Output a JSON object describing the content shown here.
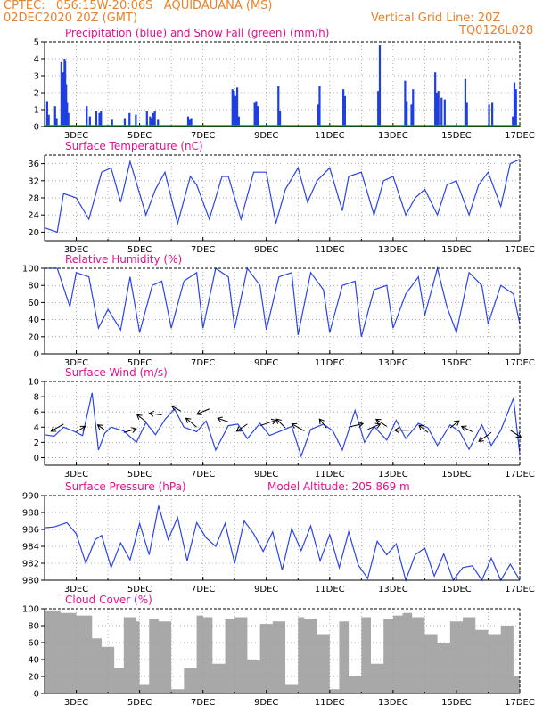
{
  "header": {
    "line1_left": "CPTEC:   056:15W-20:06S   AQUIDAUANA (MS)",
    "line2_left": "02DEC2020 20Z (GMT)",
    "line2_right": "Vertical Grid Line: 20Z",
    "line3_right": "TQ0126L028"
  },
  "colors": {
    "header": "#e8822a",
    "title": "#e0118e",
    "precip": "#1f3fe0",
    "snow": "#1fa01f",
    "line": "#2a44e8",
    "cloud": "#a8a8a8",
    "grid": "#9a9a9a"
  },
  "x_axis": {
    "day_ticks": [
      "3DEC",
      "5DEC",
      "7DEC",
      "9DEC",
      "11DEC",
      "13DEC",
      "15DEC",
      "17DEC"
    ]
  },
  "chart_data": [
    {
      "id": "precip",
      "type": "bar",
      "title": "Precipitation (blue) and Snow Fall (green) (mm/h)",
      "ylim": [
        0,
        5
      ],
      "yticks": [
        "0",
        "1",
        "2",
        "3",
        "4",
        "5"
      ],
      "series": [
        {
          "name": "Precipitation (blue)",
          "x": [
            0.05,
            0.1,
            0.3,
            0.35,
            0.5,
            0.55,
            0.6,
            0.62,
            0.65,
            0.68,
            0.72,
            1.3,
            1.4,
            1.6,
            1.7,
            1.75,
            2.1,
            2.5,
            2.65,
            2.85,
            3.2,
            3.3,
            3.35,
            3.4,
            3.45,
            3.55,
            4.5,
            4.55,
            4.6,
            5.9,
            5.95,
            6.0,
            6.05,
            6.1,
            6.6,
            6.65,
            6.7,
            7.35,
            7.4,
            8.6,
            8.65,
            9.4,
            9.45,
            10.5,
            10.55,
            11.35,
            11.4,
            11.55,
            11.6,
            12.3,
            12.35,
            12.4,
            12.5,
            12.6,
            13.25,
            13.3,
            14.0,
            14.1,
            14.75,
            14.8,
            14.85
          ],
          "values": [
            1.5,
            0.7,
            1.2,
            0.5,
            3.8,
            3.2,
            4.0,
            3.9,
            2.5,
            1.4,
            0.8,
            1.2,
            0.6,
            0.9,
            0.8,
            0.9,
            0.4,
            0.5,
            0.8,
            0.7,
            0.9,
            0.6,
            0.5,
            0.8,
            0.9,
            0.4,
            0.6,
            0.4,
            0.5,
            2.2,
            2.1,
            1.8,
            2.3,
            0.6,
            1.4,
            1.5,
            1.2,
            2.4,
            0.9,
            1.3,
            2.4,
            2.2,
            1.8,
            2.1,
            4.8,
            2.7,
            1.5,
            1.3,
            2.2,
            3.2,
            2.0,
            2.1,
            1.7,
            1.6,
            2.8,
            1.4,
            1.3,
            1.4,
            0.6,
            2.6,
            2.2
          ]
        },
        {
          "name": "Snow Fall (green)",
          "x": [
            0,
            15
          ],
          "values": [
            0,
            0
          ]
        }
      ]
    },
    {
      "id": "temp",
      "type": "line",
      "title": "Surface Temperature (nC)",
      "ylim": [
        18,
        38
      ],
      "yticks": [
        "20",
        "24",
        "28",
        "32",
        "36"
      ],
      "series": [
        {
          "x": [
            0,
            0.4,
            0.6,
            1.0,
            1.4,
            1.8,
            2.1,
            2.4,
            2.7,
            3.2,
            3.5,
            3.8,
            4.2,
            4.6,
            4.8,
            5.2,
            5.6,
            5.8,
            6.2,
            6.6,
            7.0,
            7.3,
            7.6,
            8.0,
            8.3,
            8.6,
            9.0,
            9.4,
            9.6,
            10.0,
            10.4,
            10.7,
            11.0,
            11.4,
            11.7,
            12.0,
            12.4,
            12.7,
            13.0,
            13.4,
            13.7,
            14.0,
            14.4,
            14.7,
            15.0
          ],
          "values": [
            21,
            20,
            29,
            28,
            23,
            34,
            35,
            27,
            36.5,
            24,
            30,
            34,
            22,
            33,
            31,
            23,
            33,
            33,
            23,
            34,
            34,
            22,
            30,
            35,
            27,
            32,
            35,
            25,
            33,
            34,
            24,
            32,
            33,
            24,
            28,
            30,
            24,
            31,
            32,
            24,
            31,
            34,
            26,
            36,
            37
          ]
        }
      ]
    },
    {
      "id": "rh",
      "type": "line",
      "title": "Relative Humidity (%)",
      "ylim": [
        0,
        100
      ],
      "yticks": [
        "0",
        "20",
        "40",
        "60",
        "80",
        "100"
      ],
      "series": [
        {
          "x": [
            0,
            0.4,
            0.8,
            1.0,
            1.4,
            1.7,
            2.0,
            2.4,
            2.7,
            3.0,
            3.4,
            3.7,
            4.0,
            4.4,
            4.8,
            5.0,
            5.4,
            5.8,
            6.0,
            6.4,
            6.8,
            7.0,
            7.4,
            7.8,
            8.0,
            8.4,
            8.8,
            9.0,
            9.4,
            9.8,
            10.0,
            10.4,
            10.8,
            11.0,
            11.4,
            11.8,
            12.0,
            12.4,
            12.7,
            13.0,
            13.4,
            13.8,
            14.0,
            14.4,
            14.8,
            15.0
          ],
          "values": [
            100,
            100,
            55,
            95,
            90,
            30,
            52,
            28,
            90,
            25,
            80,
            85,
            30,
            85,
            95,
            30,
            100,
            90,
            30,
            100,
            80,
            28,
            90,
            95,
            22,
            95,
            75,
            25,
            80,
            85,
            20,
            75,
            80,
            30,
            70,
            90,
            45,
            100,
            55,
            25,
            95,
            80,
            35,
            80,
            70,
            35
          ]
        }
      ]
    },
    {
      "id": "wind",
      "type": "line",
      "title": "Surface Wind (m/s)",
      "ylim": [
        -1,
        10
      ],
      "yticks": [
        "0",
        "2",
        "4",
        "6",
        "8",
        "10"
      ],
      "series": [
        {
          "x": [
            0,
            0.3,
            0.6,
            0.9,
            1.2,
            1.5,
            1.7,
            1.9,
            2.1,
            2.5,
            2.9,
            3.2,
            3.5,
            3.8,
            4.1,
            4.4,
            4.8,
            5.1,
            5.4,
            5.8,
            6.1,
            6.4,
            6.8,
            7.1,
            7.4,
            7.8,
            8.1,
            8.4,
            8.8,
            9.1,
            9.4,
            9.8,
            10.1,
            10.4,
            10.8,
            11.1,
            11.4,
            11.8,
            12.1,
            12.4,
            12.8,
            13.1,
            13.4,
            13.8,
            14.1,
            14.4,
            14.8,
            15.0
          ],
          "values": [
            3,
            2.8,
            4,
            3.5,
            2.9,
            8.5,
            1,
            3.2,
            4,
            3.5,
            2,
            4.6,
            3,
            5,
            6.4,
            4,
            3.4,
            4.8,
            1,
            4.2,
            4.4,
            2.5,
            4.5,
            2.9,
            3.4,
            4.1,
            0.2,
            3.7,
            4.4,
            3.5,
            1,
            6.2,
            2,
            4.1,
            2.3,
            4.9,
            2.5,
            4.5,
            3.9,
            1.6,
            4.3,
            3.4,
            1.1,
            4.3,
            1.6,
            3.6,
            7.8,
            0.5
          ]
        }
      ]
    },
    {
      "id": "pressure",
      "type": "line",
      "title": "Surface Pressure (hPa)",
      "annotation": "Model Altitude: 205.869 m",
      "ylim": [
        980,
        990
      ],
      "yticks": [
        "980",
        "982",
        "984",
        "986",
        "988",
        "990"
      ],
      "series": [
        {
          "x": [
            0,
            0.3,
            0.7,
            1.0,
            1.3,
            1.6,
            1.8,
            2.1,
            2.4,
            2.7,
            3.0,
            3.3,
            3.6,
            3.9,
            4.2,
            4.5,
            4.8,
            5.1,
            5.4,
            5.7,
            6.0,
            6.3,
            6.6,
            6.9,
            7.2,
            7.5,
            7.8,
            8.1,
            8.4,
            8.7,
            9.0,
            9.3,
            9.6,
            9.9,
            10.2,
            10.5,
            10.8,
            11.1,
            11.4,
            11.7,
            12.0,
            12.3,
            12.6,
            12.9,
            13.2,
            13.5,
            13.8,
            14.1,
            14.4,
            14.7,
            15.0
          ],
          "values": [
            986.2,
            986.3,
            986.8,
            985.5,
            982.0,
            984.8,
            985.3,
            981.5,
            984.4,
            982.4,
            986.7,
            983.0,
            988.8,
            984.8,
            987.4,
            982.3,
            986.8,
            985.0,
            984.0,
            986.7,
            982.0,
            987.0,
            985.5,
            983.4,
            985.7,
            981.2,
            986.1,
            983.5,
            986.4,
            982.3,
            985.4,
            981.5,
            985.7,
            981.8,
            980.2,
            984.6,
            983.0,
            984.3,
            980.0,
            983.0,
            983.8,
            980.5,
            983.1,
            979.5,
            981.5,
            981.7,
            979.8,
            982.6,
            979.6,
            981.9,
            980.0
          ]
        }
      ]
    },
    {
      "id": "cloud",
      "type": "area",
      "title": "Cloud Cover (%)",
      "ylim": [
        0,
        100
      ],
      "yticks": [
        "0",
        "20",
        "40",
        "60",
        "80",
        "100"
      ],
      "series": [
        {
          "x": [
            0,
            0.5,
            1.0,
            1.5,
            1.8,
            2.2,
            2.5,
            2.9,
            3.0,
            3.3,
            3.6,
            4.0,
            4.4,
            4.8,
            5.0,
            5.3,
            5.7,
            6.0,
            6.4,
            6.8,
            7.2,
            7.6,
            8.0,
            8.2,
            8.6,
            9.0,
            9.3,
            9.6,
            10.0,
            10.3,
            10.7,
            11.0,
            11.3,
            11.6,
            12.0,
            12.4,
            12.8,
            13.2,
            13.6,
            14.0,
            14.4,
            14.8,
            15.0
          ],
          "values": [
            98,
            95,
            92,
            65,
            55,
            30,
            90,
            85,
            10,
            88,
            85,
            5,
            30,
            92,
            90,
            35,
            88,
            90,
            40,
            82,
            85,
            10,
            90,
            88,
            70,
            5,
            85,
            20,
            90,
            35,
            88,
            92,
            95,
            90,
            70,
            60,
            85,
            90,
            75,
            70,
            80,
            20,
            30
          ]
        }
      ]
    }
  ]
}
